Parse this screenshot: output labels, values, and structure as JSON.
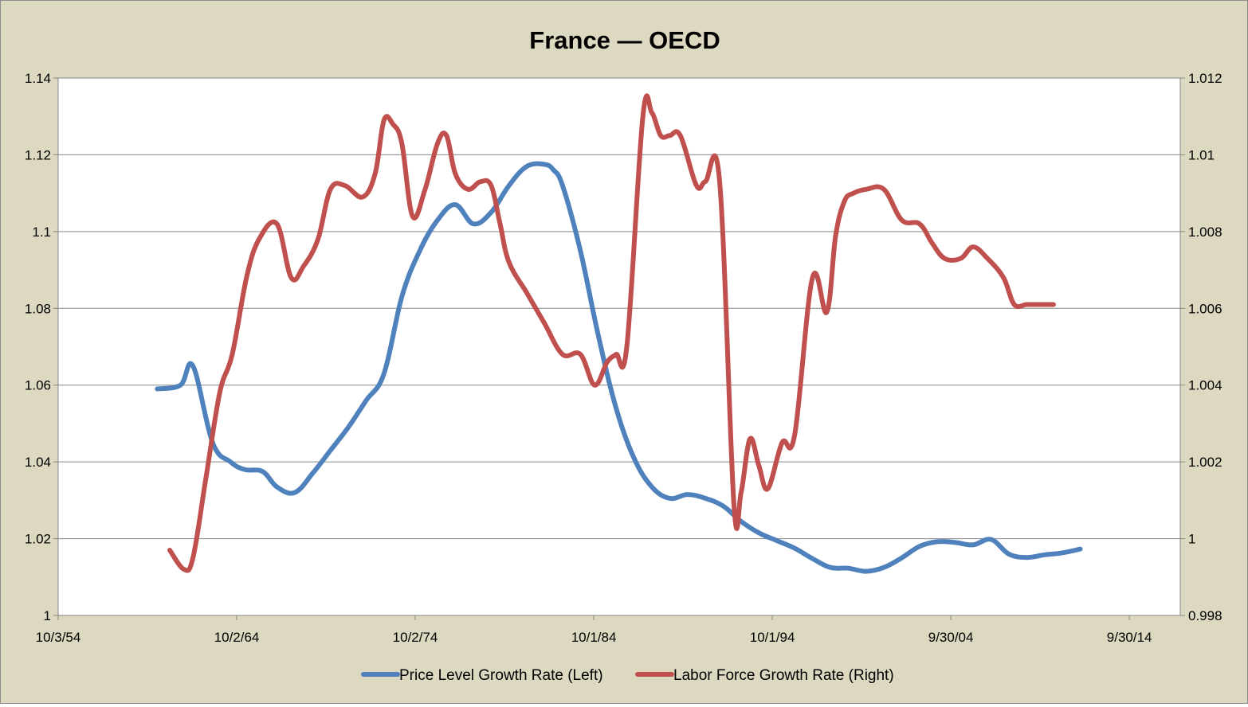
{
  "chart_data": {
    "type": "line",
    "title": "France — OECD",
    "background": "#DDD8C0",
    "plot_background": "#FFFFFF",
    "grid": true,
    "legend_position": "bottom",
    "x_tick_labels": [
      "10/3/54",
      "10/2/64",
      "10/2/74",
      "10/1/84",
      "10/1/94",
      "9/30/04",
      "9/30/14"
    ],
    "x_tick_years": [
      1954.75,
      1964.75,
      1974.75,
      1984.75,
      1994.75,
      2004.75,
      2014.75
    ],
    "xlim": [
      1954.75,
      2017.6
    ],
    "left_axis": {
      "ylim": [
        1.0,
        1.14
      ],
      "tick_labels": [
        "1",
        "1.02",
        "1.04",
        "1.06",
        "1.08",
        "1.1",
        "1.12",
        "1.14"
      ],
      "tick_values": [
        1.0,
        1.02,
        1.04,
        1.06,
        1.08,
        1.1,
        1.12,
        1.14
      ]
    },
    "right_axis": {
      "ylim": [
        0.998,
        1.012
      ],
      "tick_labels": [
        "0.998",
        "1",
        "1.002",
        "1.004",
        "1.006",
        "1.008",
        "1.01",
        "1.012"
      ],
      "tick_values": [
        0.998,
        1.0,
        1.002,
        1.004,
        1.006,
        1.008,
        1.01,
        1.012
      ]
    },
    "series": [
      {
        "name": "Price Level Growth Rate (Left)",
        "axis": "left",
        "color": "#4F81BD",
        "x": [
          1960.3,
          1961.6,
          1962.3,
          1963.4,
          1964.4,
          1965.2,
          1966.2,
          1967.0,
          1968.0,
          1969.0,
          1970.0,
          1971.0,
          1972.0,
          1973.0,
          1974.0,
          1975.0,
          1976.0,
          1977.0,
          1978.0,
          1979.0,
          1980.0,
          1981.0,
          1982.0,
          1982.5,
          1983.0,
          1984.0,
          1985.0,
          1986.0,
          1987.0,
          1988.0,
          1989.0,
          1990.0,
          1991.0,
          1992.0,
          1993.0,
          1994.0,
          1995.0,
          1996.0,
          1997.0,
          1998.0,
          1999.0,
          2000.0,
          2001.0,
          2002.0,
          2003.0,
          2004.0,
          2005.0,
          2006.0,
          2007.0,
          2008.0,
          2009.0,
          2010.0,
          2011.0,
          2012.0
        ],
        "values": [
          1.059,
          1.06,
          1.065,
          1.045,
          1.04,
          1.038,
          1.0375,
          1.0335,
          1.032,
          1.037,
          1.043,
          1.049,
          1.056,
          1.063,
          1.083,
          1.095,
          1.103,
          1.107,
          1.102,
          1.105,
          1.112,
          1.117,
          1.1175,
          1.116,
          1.112,
          1.095,
          1.073,
          1.054,
          1.041,
          1.0335,
          1.0305,
          1.0315,
          1.0305,
          1.0285,
          1.0245,
          1.0215,
          1.0195,
          1.0175,
          1.0148,
          1.0125,
          1.0123,
          1.0115,
          1.0125,
          1.015,
          1.018,
          1.0192,
          1.019,
          1.0184,
          1.0198,
          1.016,
          1.0151,
          1.0158,
          1.0163,
          1.0173
        ]
      },
      {
        "name": "Labor Force Growth Rate (Right)",
        "axis": "right",
        "color": "#C0504D",
        "x": [
          1961.0,
          1961.8,
          1962.3,
          1963.0,
          1963.8,
          1964.5,
          1965.3,
          1966.0,
          1967.0,
          1967.8,
          1968.5,
          1969.3,
          1970.0,
          1970.8,
          1971.8,
          1972.5,
          1973.0,
          1973.5,
          1974.0,
          1974.6,
          1975.3,
          1976.0,
          1976.5,
          1977.0,
          1977.7,
          1978.4,
          1979.0,
          1979.5,
          1980.0,
          1981.0,
          1982.0,
          1983.0,
          1984.0,
          1984.8,
          1985.5,
          1986.0,
          1986.6,
          1987.5,
          1988.0,
          1988.5,
          1989.0,
          1989.6,
          1990.5,
          1991.0,
          1991.8,
          1992.6,
          1993.0,
          1993.5,
          1994.0,
          1994.5,
          1995.3,
          1996.0,
          1997.0,
          1997.8,
          1998.3,
          1998.8,
          1999.3,
          2000.0,
          2001.0,
          2002.0,
          2003.0,
          2003.7,
          2004.4,
          2005.3,
          2006.0,
          2006.8,
          2007.7,
          2008.3,
          2009.0,
          2009.7,
          2010.5
        ],
        "values": [
          0.9997,
          0.9992,
          0.9995,
          1.0015,
          1.0038,
          1.0048,
          1.0068,
          1.0078,
          1.0082,
          1.0068,
          1.0071,
          1.0078,
          1.0091,
          1.0092,
          1.0089,
          1.0095,
          1.0109,
          1.0108,
          1.0103,
          1.0084,
          1.0091,
          1.0103,
          1.0105,
          1.0095,
          1.0091,
          1.0093,
          1.0092,
          1.0082,
          1.0072,
          1.0064,
          1.0056,
          1.0048,
          1.0048,
          1.004,
          1.0046,
          1.0048,
          1.005,
          1.011,
          1.0111,
          1.0105,
          1.0105,
          1.0105,
          1.0092,
          1.0093,
          1.0093,
          1.0009,
          1.0012,
          1.0026,
          1.0019,
          1.0013,
          1.0025,
          1.0027,
          1.0068,
          1.0059,
          1.0079,
          1.0088,
          1.009,
          1.0091,
          1.0091,
          1.0083,
          1.0082,
          1.0077,
          1.0073,
          1.0073,
          1.0076,
          1.0073,
          1.0068,
          1.0061,
          1.0061,
          1.0061,
          1.0061
        ]
      }
    ]
  }
}
